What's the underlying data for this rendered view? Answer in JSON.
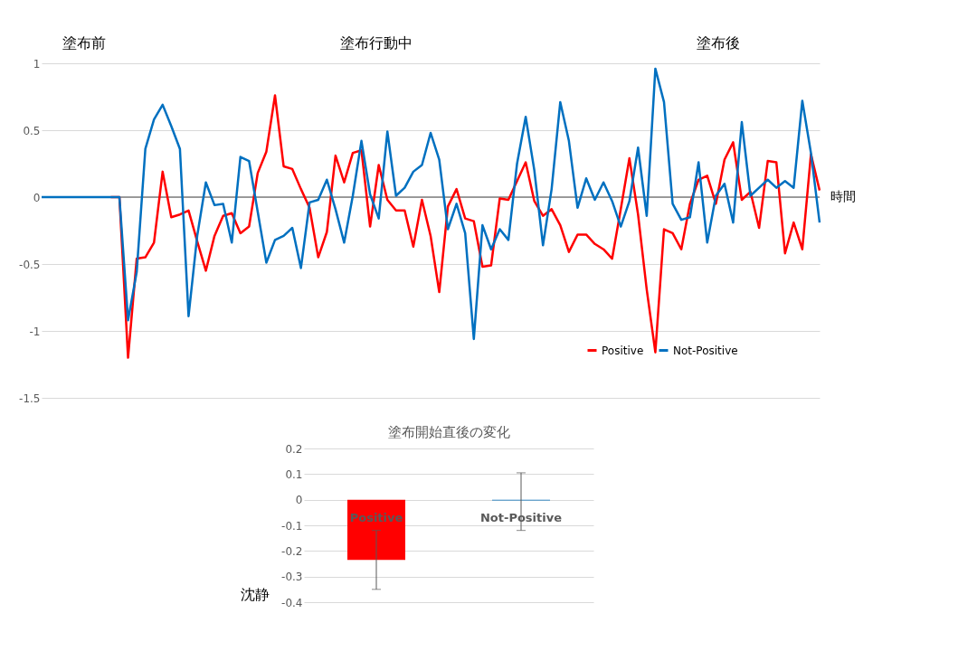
{
  "chart_data": [
    {
      "type": "line",
      "xlabel": "時間",
      "categories": [
        null,
        null,
        null,
        null,
        null,
        null,
        null,
        null,
        null,
        null,
        null,
        null,
        null,
        null,
        null,
        null,
        null,
        null,
        null,
        null,
        null,
        null,
        null,
        null,
        null,
        null,
        null,
        null,
        null,
        null,
        null,
        null,
        null,
        null,
        null,
        null,
        null,
        null,
        null,
        null,
        null,
        null,
        null,
        null,
        null,
        null,
        null,
        null,
        null,
        null,
        null,
        null,
        null,
        null,
        null,
        null,
        null,
        null,
        null,
        null,
        null,
        null,
        null,
        null,
        null,
        null,
        null,
        null,
        null,
        null,
        null,
        null,
        null,
        null,
        null,
        null,
        null,
        null,
        null,
        null,
        null,
        null,
        null,
        null,
        null,
        null,
        null,
        null,
        null,
        null,
        null
      ],
      "series": [
        {
          "name": "Positive",
          "color": "#ff0000",
          "values": [
            null,
            null,
            null,
            null,
            null,
            null,
            null,
            null,
            0,
            0,
            -1.2,
            -0.46,
            -0.45,
            -0.34,
            0.19,
            -0.15,
            -0.13,
            -0.1,
            -0.33,
            -0.55,
            -0.29,
            -0.14,
            -0.12,
            -0.27,
            -0.22,
            0.18,
            0.34,
            0.76,
            0.23,
            0.21,
            0.06,
            -0.08,
            -0.45,
            -0.26,
            0.31,
            0.11,
            0.33,
            0.35,
            -0.22,
            0.24,
            -0.02,
            -0.1,
            -0.1,
            -0.37,
            -0.02,
            -0.29,
            -0.71,
            -0.07,
            0.06,
            -0.16,
            -0.18,
            -0.52,
            -0.51,
            -0.01,
            -0.02,
            0.12,
            0.26,
            -0.03,
            -0.14,
            -0.09,
            -0.21,
            -0.41,
            -0.28,
            -0.28,
            -0.35,
            -0.39,
            -0.46,
            -0.09,
            0.29,
            -0.13,
            -0.69,
            -1.16,
            -0.24,
            -0.27,
            -0.39,
            -0.05,
            0.13,
            0.16,
            -0.05,
            0.28,
            0.41,
            -0.02,
            0.04,
            -0.23,
            0.27,
            0.26,
            -0.42,
            -0.19,
            -0.39,
            0.32,
            0.05
          ]
        },
        {
          "name": "Not-Positive",
          "color": "#0070c0",
          "values": [
            0,
            0,
            0,
            0,
            0,
            0,
            0,
            0,
            0,
            0,
            -0.92,
            -0.56,
            0.36,
            0.58,
            0.69,
            0.53,
            0.36,
            -0.89,
            -0.29,
            0.11,
            -0.06,
            -0.05,
            -0.34,
            0.3,
            0.27,
            -0.11,
            -0.49,
            -0.32,
            -0.29,
            -0.23,
            -0.53,
            -0.04,
            -0.02,
            0.13,
            -0.09,
            -0.34,
            0.01,
            0.42,
            0.02,
            -0.16,
            0.49,
            0.01,
            0.07,
            0.19,
            0.24,
            0.48,
            0.28,
            -0.24,
            -0.05,
            -0.27,
            -1.06,
            -0.21,
            -0.39,
            -0.24,
            -0.32,
            0.25,
            0.6,
            0.2,
            -0.36,
            0.06,
            0.71,
            0.42,
            -0.08,
            0.14,
            -0.02,
            0.11,
            -0.03,
            -0.22,
            -0.03,
            0.37,
            -0.14,
            0.96,
            0.71,
            -0.05,
            -0.17,
            -0.15,
            0.26,
            -0.34,
            0.01,
            0.1,
            -0.19,
            0.56,
            0.01,
            0.07,
            0.13,
            0.07,
            0.12,
            0.07,
            0.72,
            0.33,
            -0.19
          ]
        }
      ],
      "ylim": [
        -1.5,
        1
      ],
      "yticks": [
        -1.5,
        -1,
        -0.5,
        0,
        0.5,
        1
      ],
      "grid": "y",
      "tick_labels": "y",
      "legend": "bottom right",
      "ref_lines": [
        {
          "axis": "y",
          "value": 0,
          "color": "#808080"
        }
      ],
      "annotations": [
        "塗布前",
        "塗布行動中",
        "塗布後"
      ]
    },
    {
      "type": "bar",
      "title": "塗布開始直後の変化",
      "categories": [
        "Positive",
        "Not-Positive"
      ],
      "values": [
        -0.235,
        -0.003
      ],
      "colors": [
        "#ff0000",
        "#0070c0"
      ],
      "errors": [
        [
          -0.35,
          -0.12
        ],
        [
          -0.12,
          0.105
        ]
      ],
      "ylim": [
        -0.4,
        0.2
      ],
      "yticks": [
        -0.4,
        -0.3,
        -0.2,
        -0.1,
        0,
        0.1,
        0.2
      ],
      "grid": "y",
      "tick_labels": "y",
      "annotations": [
        "沈静"
      ]
    }
  ]
}
